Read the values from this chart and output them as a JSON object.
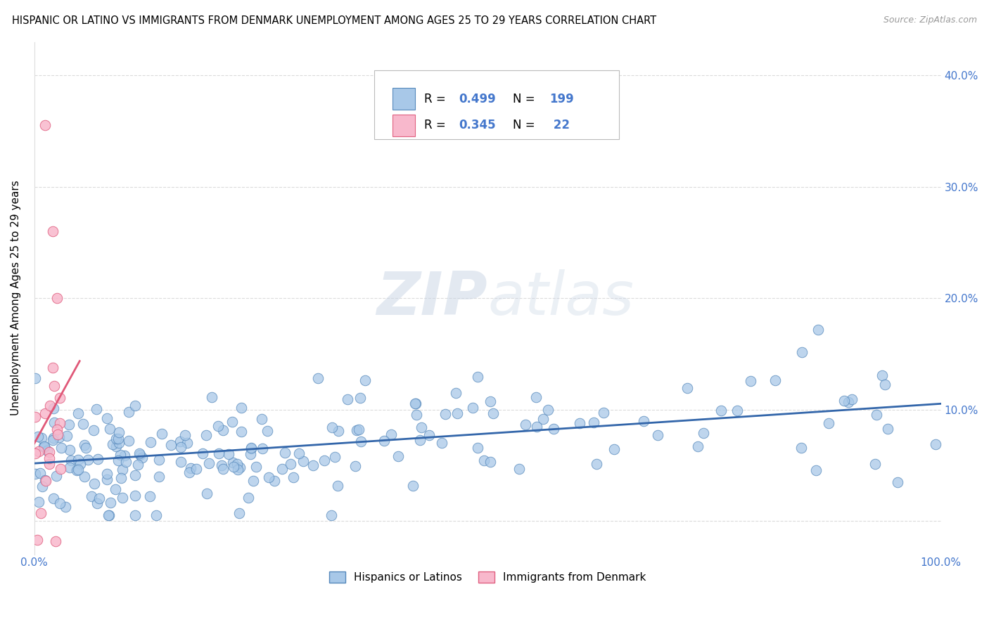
{
  "title": "HISPANIC OR LATINO VS IMMIGRANTS FROM DENMARK UNEMPLOYMENT AMONG AGES 25 TO 29 YEARS CORRELATION CHART",
  "source": "Source: ZipAtlas.com",
  "ylabel": "Unemployment Among Ages 25 to 29 years",
  "xlim": [
    0,
    100
  ],
  "ylim": [
    -3,
    43
  ],
  "series1_color": "#a8c8e8",
  "series1_edge": "#5588bb",
  "series1_line_color": "#3366aa",
  "series2_color": "#f8b8cc",
  "series2_edge": "#e06080",
  "series2_line_color": "#e05878",
  "R1": 0.499,
  "N1": 199,
  "R2": 0.345,
  "N2": 22,
  "watermark_color": "#d0d8e8",
  "bg_color": "#ffffff",
  "grid_color": "#cccccc",
  "tick_label_color": "#4477cc",
  "title_fontsize": 11,
  "axis_label_fontsize": 11,
  "source_color": "#999999"
}
